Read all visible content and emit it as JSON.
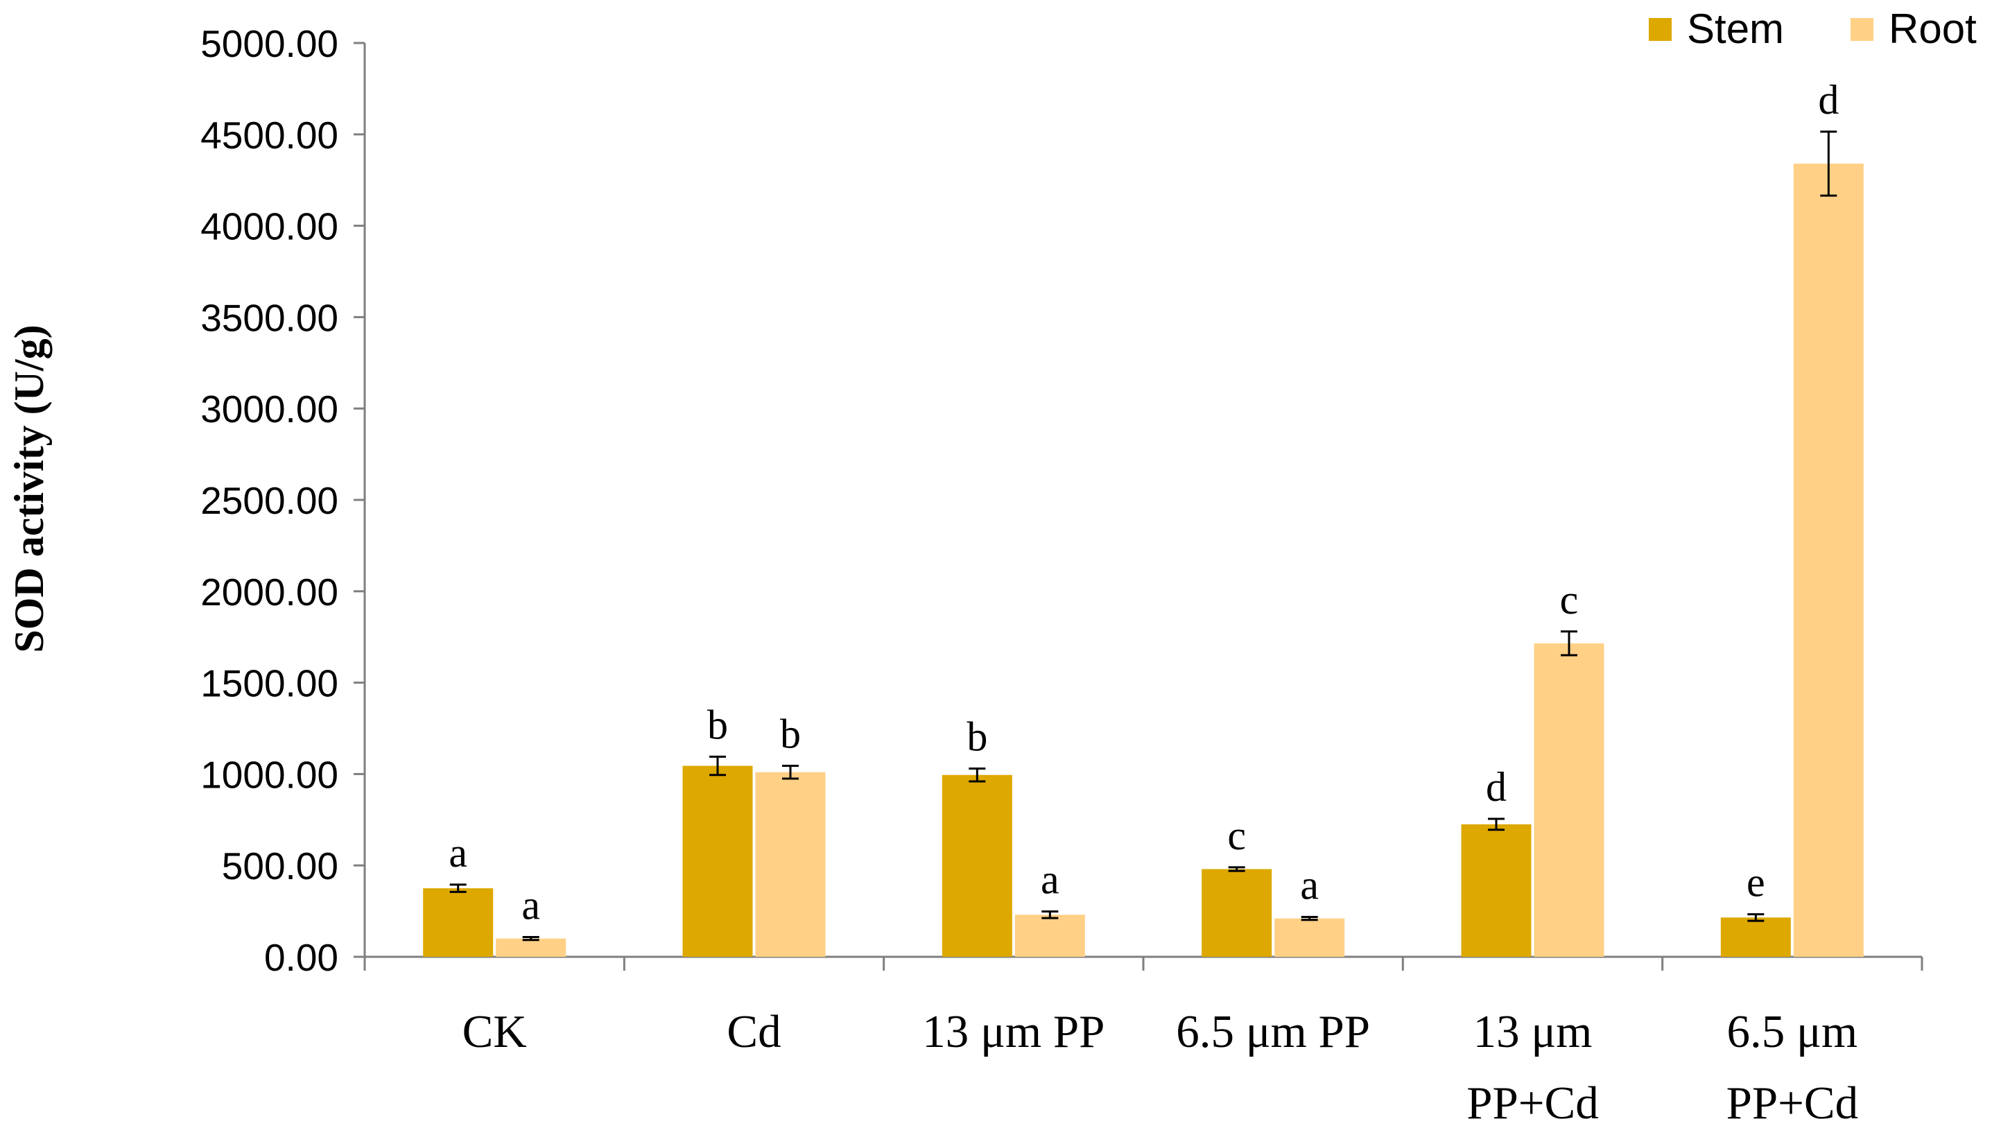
{
  "chart_data": {
    "type": "bar",
    "title": "",
    "xlabel": "",
    "ylabel": "SOD activity (U/g)",
    "ylim": [
      0,
      5000
    ],
    "yticks": [
      "0.00",
      "500.00",
      "1000.00",
      "1500.00",
      "2000.00",
      "2500.00",
      "3000.00",
      "3500.00",
      "4000.00",
      "4500.00",
      "5000.00"
    ],
    "categories": [
      [
        "CK"
      ],
      [
        "Cd"
      ],
      [
        "13 μm PP"
      ],
      [
        "6.5 μm PP"
      ],
      [
        "13 μm",
        "PP+Cd"
      ],
      [
        "6.5 μm",
        "PP+Cd"
      ]
    ],
    "legend_position": "top-right",
    "grid": false,
    "series": [
      {
        "name": "Stem",
        "color": "#DDA800",
        "values": [
          375,
          1045,
          995,
          480,
          725,
          215
        ],
        "errors": [
          20,
          50,
          35,
          10,
          30,
          18
        ],
        "significance": [
          "a",
          "b",
          "b",
          "c",
          "d",
          "e"
        ]
      },
      {
        "name": "Root",
        "color": "#FFD086",
        "values": [
          100,
          1010,
          230,
          210,
          1715,
          4340
        ],
        "errors": [
          8,
          35,
          18,
          8,
          65,
          175
        ],
        "significance": [
          "a",
          "b",
          "a",
          "a",
          "c",
          "d"
        ]
      }
    ]
  }
}
